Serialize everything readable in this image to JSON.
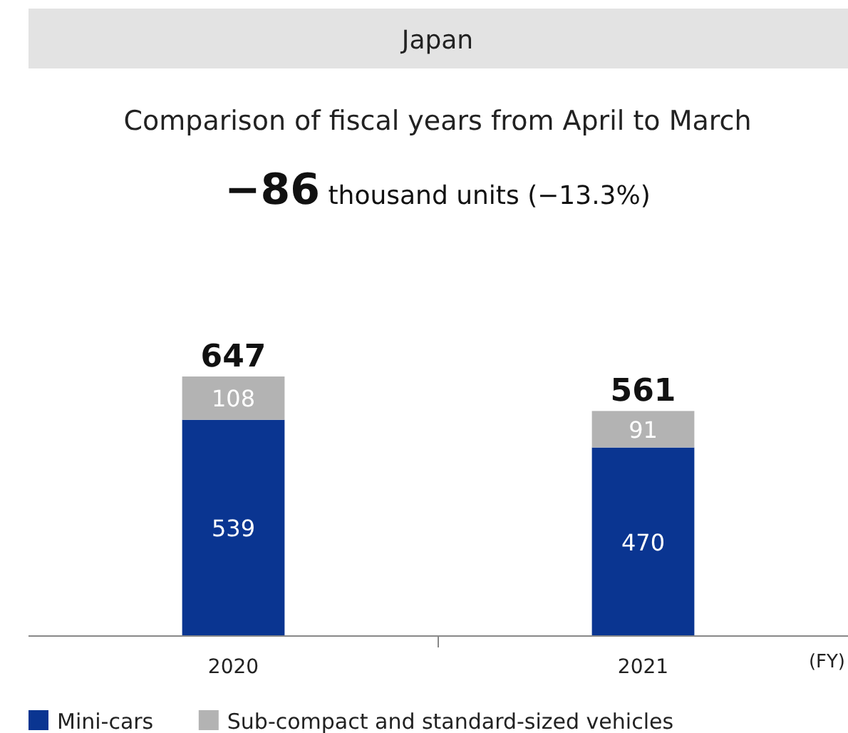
{
  "chart_data": {
    "type": "bar",
    "title": "Japan",
    "subtitle": "Comparison of fiscal years from April to March",
    "annotations": [
      "−86 thousand units (−13.3%)",
      "(FY)"
    ],
    "categories": [
      "2020",
      "2021"
    ],
    "stacked": true,
    "data_labels": true,
    "totals": [
      "647",
      "561"
    ],
    "legend": "bottom left",
    "grid": false,
    "series": [
      {
        "name": "Mini-cars",
        "color": "#0a3591",
        "values": [
          539,
          470
        ]
      },
      {
        "name": "Sub-compact and standard-sized vehicles",
        "color": "#b3b3b3",
        "values": [
          108,
          91
        ]
      }
    ]
  }
}
